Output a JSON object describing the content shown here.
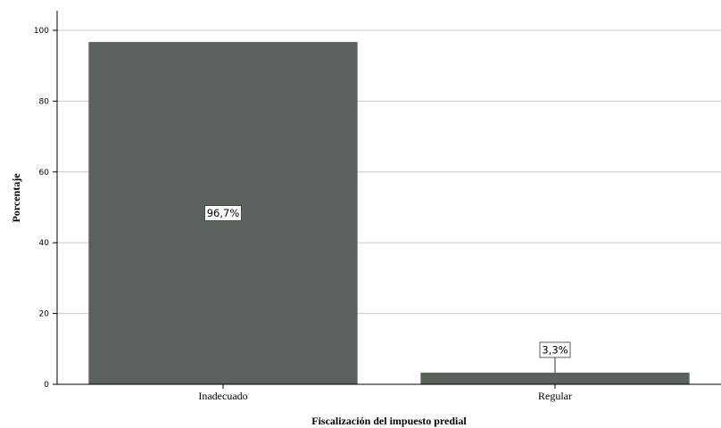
{
  "chart_data": {
    "type": "bar",
    "categories": [
      "Inadecuado",
      "Regular"
    ],
    "values": [
      96.7,
      3.3
    ],
    "data_labels": [
      "96,7%",
      "3,3%"
    ],
    "title": "",
    "xlabel": "Fiscalización del impuesto predial",
    "ylabel": "Porcentaje",
    "ylim": [
      0,
      100
    ],
    "yticks": [
      0,
      20,
      40,
      60,
      80,
      100
    ],
    "grid": true,
    "legend": "none",
    "bar_color": "#5b625b",
    "grid_color": "#c8c8c8"
  }
}
